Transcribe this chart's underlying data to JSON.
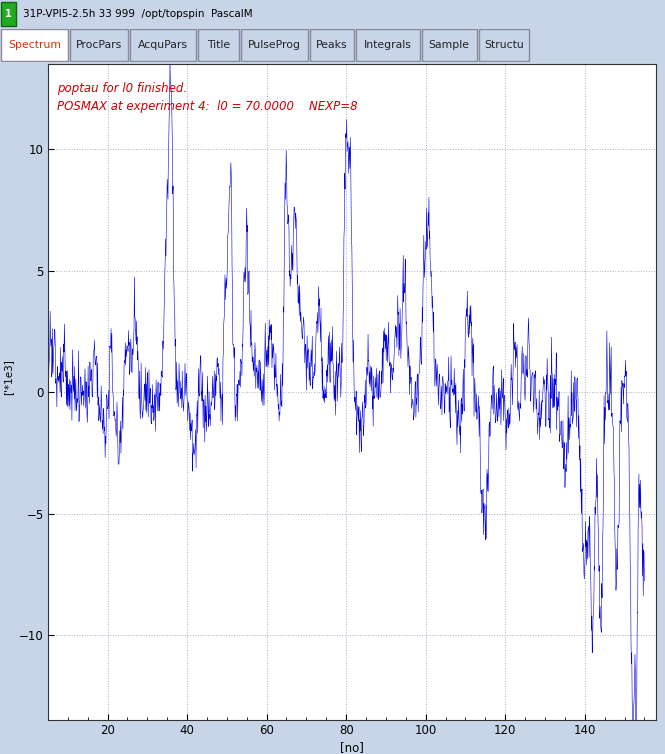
{
  "title_bar_text": "31P-VPI5-2.5h 33 999  /opt/topspin  PascalM",
  "title_num": "1",
  "tabs": [
    "Spectrum",
    "ProcPars",
    "AcquPars",
    "Title",
    "PulseProg",
    "Peaks",
    "Integrals",
    "Sample",
    "Structu"
  ],
  "active_tab": "Spectrum",
  "annotation_line1": "poptau for l0 finished.",
  "annotation_line2": "POSMAX at experiment 4:  l0 = 70.0000    NEXP=8",
  "ylabel": "['*1e3]",
  "xlabel": "[no]",
  "xlim": [
    5,
    158
  ],
  "ylim": [
    -13.5,
    13.5
  ],
  "yticks": [
    -10,
    -5,
    0,
    5,
    10
  ],
  "xticks": [
    20,
    40,
    60,
    80,
    100,
    120,
    140
  ],
  "line_color": "#0000dd",
  "plot_bg": "#ffffff",
  "outer_bg": "#c8d4e8",
  "title_bg": "#aabcce",
  "tab_active_color": "#dd3300",
  "grid_color": "#9999bb",
  "annotation_color": "#cc0000",
  "n_points": 1550,
  "seed": 123
}
